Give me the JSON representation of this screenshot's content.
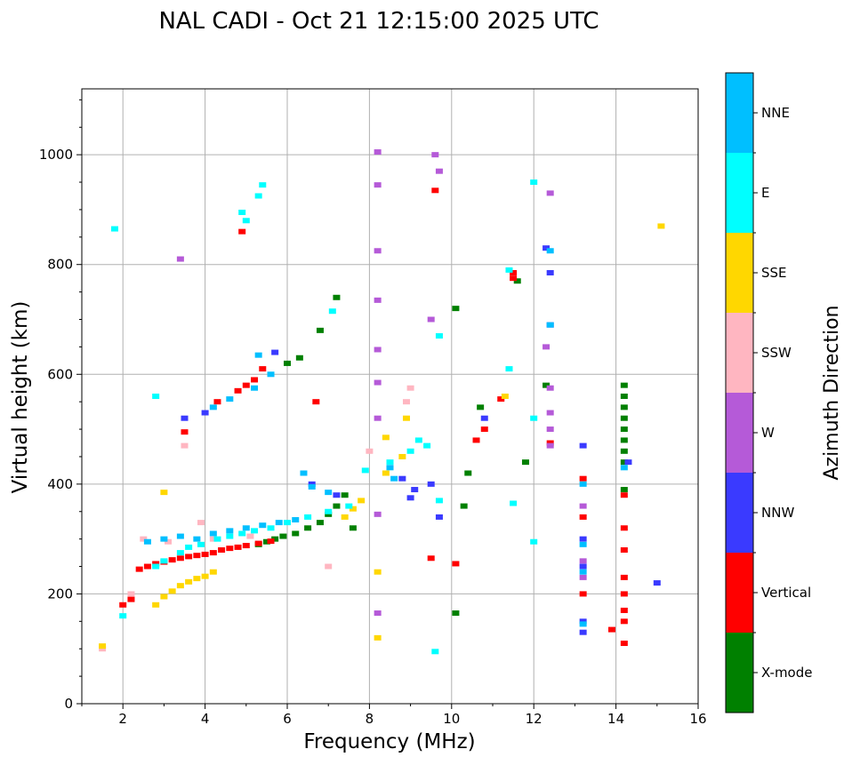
{
  "chart_data": {
    "type": "scatter",
    "title": "NAL CADI - Oct 21 12:15:00 2025 UTC",
    "xlabel": "Frequency (MHz)",
    "ylabel": "Virtual height (km)",
    "xlim": [
      1,
      16
    ],
    "ylim": [
      0,
      1120
    ],
    "xticks": [
      2,
      4,
      6,
      8,
      10,
      12,
      14,
      16
    ],
    "yticks": [
      0,
      200,
      400,
      600,
      800,
      1000
    ],
    "grid": true,
    "colorbar": {
      "label": "Azimuth Direction",
      "categories": [
        "X-mode",
        "Vertical",
        "NNW",
        "W",
        "SSW",
        "SSE",
        "E",
        "NNE"
      ],
      "colors": [
        "#008000",
        "#ff0000",
        "#3a3aff",
        "#b55ad8",
        "#ffb6c1",
        "#ffd700",
        "#00ffff",
        "#00bfff"
      ]
    },
    "series": [
      {
        "name": "X-mode",
        "points": [
          [
            5.3,
            290
          ],
          [
            5.5,
            295
          ],
          [
            5.7,
            300
          ],
          [
            5.9,
            305
          ],
          [
            6.2,
            310
          ],
          [
            6.5,
            320
          ],
          [
            6.8,
            330
          ],
          [
            7.0,
            345
          ],
          [
            7.2,
            360
          ],
          [
            7.4,
            380
          ],
          [
            7.6,
            320
          ],
          [
            6.0,
            620
          ],
          [
            6.3,
            630
          ],
          [
            6.8,
            680
          ],
          [
            7.2,
            740
          ],
          [
            10.7,
            540
          ],
          [
            10.4,
            420
          ],
          [
            10.3,
            360
          ],
          [
            10.1,
            165
          ],
          [
            10.1,
            720
          ],
          [
            11.6,
            770
          ],
          [
            11.8,
            440
          ],
          [
            12.3,
            580
          ],
          [
            14.2,
            580
          ],
          [
            14.2,
            560
          ],
          [
            14.2,
            540
          ],
          [
            14.2,
            520
          ],
          [
            14.2,
            500
          ],
          [
            14.2,
            480
          ],
          [
            14.2,
            460
          ],
          [
            14.2,
            440
          ],
          [
            14.2,
            390
          ]
        ]
      },
      {
        "name": "Vertical",
        "points": [
          [
            2.4,
            245
          ],
          [
            2.6,
            250
          ],
          [
            2.8,
            255
          ],
          [
            3.0,
            258
          ],
          [
            3.2,
            262
          ],
          [
            3.4,
            265
          ],
          [
            3.6,
            268
          ],
          [
            3.8,
            270
          ],
          [
            4.0,
            272
          ],
          [
            4.2,
            275
          ],
          [
            4.4,
            280
          ],
          [
            4.6,
            283
          ],
          [
            4.8,
            285
          ],
          [
            5.0,
            288
          ],
          [
            5.3,
            292
          ],
          [
            5.6,
            296
          ],
          [
            2.0,
            180
          ],
          [
            2.2,
            190
          ],
          [
            3.5,
            495
          ],
          [
            4.3,
            550
          ],
          [
            4.8,
            570
          ],
          [
            5.0,
            580
          ],
          [
            5.2,
            590
          ],
          [
            5.4,
            610
          ],
          [
            4.9,
            860
          ],
          [
            6.7,
            550
          ],
          [
            9.6,
            935
          ],
          [
            9.5,
            265
          ],
          [
            10.1,
            255
          ],
          [
            10.6,
            480
          ],
          [
            10.8,
            500
          ],
          [
            11.2,
            555
          ],
          [
            11.5,
            775
          ],
          [
            11.5,
            785
          ],
          [
            12.4,
            475
          ],
          [
            13.2,
            200
          ],
          [
            13.2,
            340
          ],
          [
            13.2,
            410
          ],
          [
            14.2,
            110
          ],
          [
            14.2,
            150
          ],
          [
            14.2,
            170
          ],
          [
            14.2,
            200
          ],
          [
            14.2,
            230
          ],
          [
            14.2,
            280
          ],
          [
            14.2,
            320
          ],
          [
            14.2,
            380
          ],
          [
            13.9,
            135
          ]
        ]
      },
      {
        "name": "NNW",
        "points": [
          [
            3.5,
            520
          ],
          [
            4.0,
            530
          ],
          [
            5.7,
            640
          ],
          [
            6.6,
            400
          ],
          [
            7.2,
            380
          ],
          [
            8.8,
            410
          ],
          [
            9.0,
            375
          ],
          [
            9.1,
            390
          ],
          [
            9.5,
            400
          ],
          [
            9.7,
            340
          ],
          [
            10.8,
            520
          ],
          [
            12.3,
            830
          ],
          [
            12.4,
            785
          ],
          [
            12.4,
            690
          ],
          [
            13.2,
            130
          ],
          [
            13.2,
            150
          ],
          [
            13.2,
            250
          ],
          [
            13.2,
            300
          ],
          [
            13.2,
            470
          ],
          [
            14.3,
            440
          ],
          [
            15.0,
            220
          ]
        ]
      },
      {
        "name": "W",
        "points": [
          [
            3.4,
            810
          ],
          [
            8.2,
            1005
          ],
          [
            8.2,
            945
          ],
          [
            8.2,
            825
          ],
          [
            8.2,
            735
          ],
          [
            8.2,
            645
          ],
          [
            8.2,
            585
          ],
          [
            8.2,
            520
          ],
          [
            8.2,
            345
          ],
          [
            8.2,
            165
          ],
          [
            9.6,
            1000
          ],
          [
            9.7,
            970
          ],
          [
            9.5,
            700
          ],
          [
            12.4,
            930
          ],
          [
            12.3,
            650
          ],
          [
            12.4,
            575
          ],
          [
            12.4,
            530
          ],
          [
            12.4,
            500
          ],
          [
            12.4,
            470
          ],
          [
            13.2,
            360
          ],
          [
            13.2,
            260
          ],
          [
            13.2,
            230
          ]
        ]
      },
      {
        "name": "SSW",
        "points": [
          [
            1.5,
            100
          ],
          [
            2.2,
            200
          ],
          [
            2.5,
            300
          ],
          [
            3.1,
            295
          ],
          [
            3.5,
            470
          ],
          [
            3.9,
            330
          ],
          [
            4.2,
            300
          ],
          [
            5.1,
            305
          ],
          [
            7.0,
            250
          ],
          [
            8.0,
            460
          ],
          [
            8.9,
            550
          ],
          [
            9.0,
            575
          ]
        ]
      },
      {
        "name": "SSE",
        "points": [
          [
            1.5,
            105
          ],
          [
            2.8,
            180
          ],
          [
            3.0,
            195
          ],
          [
            3.2,
            205
          ],
          [
            3.4,
            215
          ],
          [
            3.6,
            222
          ],
          [
            3.8,
            228
          ],
          [
            4.0,
            232
          ],
          [
            4.2,
            240
          ],
          [
            3.0,
            385
          ],
          [
            7.4,
            340
          ],
          [
            7.6,
            355
          ],
          [
            7.8,
            370
          ],
          [
            8.2,
            240
          ],
          [
            8.2,
            120
          ],
          [
            8.4,
            485
          ],
          [
            8.4,
            420
          ],
          [
            8.8,
            450
          ],
          [
            8.9,
            520
          ],
          [
            11.3,
            560
          ],
          [
            15.1,
            870
          ]
        ]
      },
      {
        "name": "E",
        "points": [
          [
            1.8,
            865
          ],
          [
            2.0,
            160
          ],
          [
            2.8,
            250
          ],
          [
            3.0,
            260
          ],
          [
            3.4,
            275
          ],
          [
            3.6,
            285
          ],
          [
            3.9,
            290
          ],
          [
            4.3,
            300
          ],
          [
            4.6,
            305
          ],
          [
            4.9,
            310
          ],
          [
            5.2,
            315
          ],
          [
            5.6,
            320
          ],
          [
            6.0,
            330
          ],
          [
            6.5,
            340
          ],
          [
            7.0,
            350
          ],
          [
            7.5,
            360
          ],
          [
            7.9,
            425
          ],
          [
            4.9,
            895
          ],
          [
            5.0,
            880
          ],
          [
            5.4,
            945
          ],
          [
            5.3,
            925
          ],
          [
            2.8,
            560
          ],
          [
            7.1,
            715
          ],
          [
            8.5,
            440
          ],
          [
            9.0,
            460
          ],
          [
            9.2,
            480
          ],
          [
            9.4,
            470
          ],
          [
            9.7,
            370
          ],
          [
            9.7,
            670
          ],
          [
            11.4,
            790
          ],
          [
            11.4,
            610
          ],
          [
            11.5,
            365
          ],
          [
            12.0,
            950
          ],
          [
            12.0,
            520
          ],
          [
            12.0,
            295
          ],
          [
            9.6,
            95
          ]
        ]
      },
      {
        "name": "NNE",
        "points": [
          [
            2.6,
            295
          ],
          [
            3.0,
            300
          ],
          [
            3.4,
            305
          ],
          [
            3.8,
            300
          ],
          [
            4.2,
            310
          ],
          [
            4.6,
            315
          ],
          [
            5.0,
            320
          ],
          [
            5.4,
            325
          ],
          [
            5.8,
            330
          ],
          [
            6.2,
            335
          ],
          [
            6.4,
            420
          ],
          [
            6.6,
            395
          ],
          [
            7.0,
            385
          ],
          [
            4.2,
            540
          ],
          [
            4.6,
            555
          ],
          [
            5.2,
            575
          ],
          [
            5.6,
            600
          ],
          [
            5.3,
            635
          ],
          [
            8.5,
            430
          ],
          [
            8.6,
            410
          ],
          [
            12.4,
            825
          ],
          [
            12.4,
            690
          ],
          [
            13.2,
            145
          ],
          [
            13.2,
            240
          ],
          [
            13.2,
            290
          ],
          [
            13.2,
            400
          ],
          [
            14.2,
            430
          ]
        ]
      }
    ]
  }
}
